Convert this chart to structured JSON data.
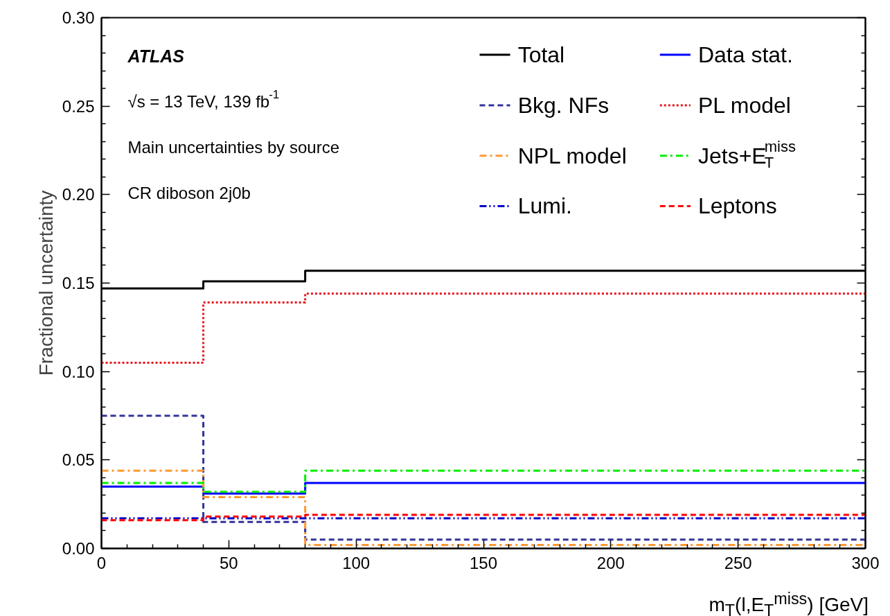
{
  "chart_data": {
    "type": "step",
    "xlabel": "m$_{T}$(l,E$_{T}$$^{miss}$) [GeV]",
    "ylabel": "Fractional uncertainty",
    "xlim": [
      0,
      300
    ],
    "xticks": [
      0,
      50,
      100,
      150,
      200,
      250,
      300
    ],
    "ylim": [
      0,
      0.3
    ],
    "yticks": [
      {
        "value": 0,
        "label": "0.00"
      },
      {
        "value": 0.05,
        "label": "0.05"
      },
      {
        "value": 0.1,
        "label": "0.10"
      },
      {
        "value": 0.15,
        "label": "0.15"
      },
      {
        "value": 0.2,
        "label": "0.20"
      },
      {
        "value": 0.25,
        "label": "0.25"
      },
      {
        "value": 0.3,
        "label": "0.30"
      }
    ],
    "x": [
      0,
      40,
      80,
      300
    ],
    "grid": false,
    "legend": "top right",
    "annotations": [
      "ATLAS",
      "√s = 13 TeV, 139 fb$^{-1}$",
      "Main uncertainties by source",
      "CR diboson 2j0b"
    ],
    "series": [
      {
        "name": "Total",
        "color": "#000000",
        "line_style": "solid",
        "values": [
          0.147,
          0.151,
          0.157,
          0.157
        ]
      },
      {
        "name": "Data stat.",
        "color": "#0000ff",
        "line_style": "solid",
        "values": [
          0.035,
          0.031,
          0.037,
          0.037
        ]
      },
      {
        "name": "Bkg. NFs",
        "color": "#333399",
        "line_style": "dashed",
        "values": [
          0.075,
          0.015,
          0.005,
          0.005
        ]
      },
      {
        "name": "PL model",
        "color": "#e8141c",
        "line_style": "dotted",
        "values": [
          0.105,
          0.139,
          0.144,
          0.144
        ]
      },
      {
        "name": "NPL model",
        "color": "#ff9933",
        "line_style": "dashdot",
        "values": [
          0.044,
          0.029,
          0.002,
          0.002
        ]
      },
      {
        "name": "Jets+E$_{T}$$^{miss}$",
        "color": "#00ee00",
        "line_style": "dashdot",
        "values": [
          0.037,
          0.032,
          0.044,
          0.044
        ]
      },
      {
        "name": "Lumi.",
        "color": "#0000cc",
        "line_style": "dashdotdot",
        "values": [
          0.017,
          0.017,
          0.017,
          0.017
        ]
      },
      {
        "name": "Leptons",
        "color": "#ff0000",
        "line_style": "dashed",
        "values": [
          0.016,
          0.018,
          0.019,
          0.019
        ]
      }
    ]
  }
}
